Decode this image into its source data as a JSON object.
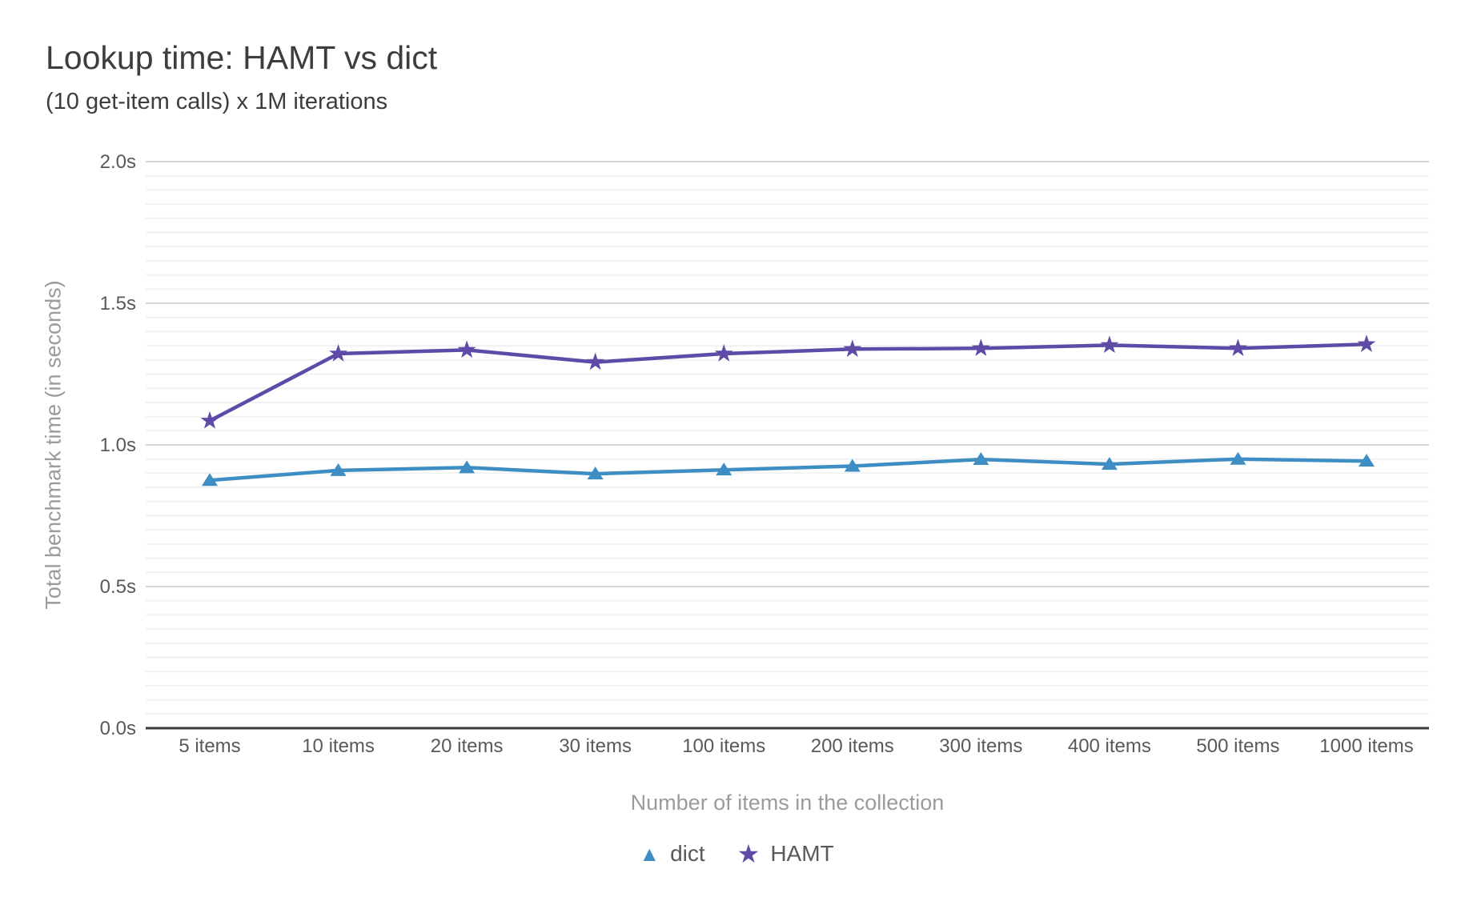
{
  "chart": {
    "title": "Lookup time: HAMT vs dict",
    "subtitle": "(10 get-item calls) x 1M iterations"
  },
  "chart_data": {
    "type": "line",
    "categories": [
      "5 items",
      "10 items",
      "20 items",
      "30 items",
      "100 items",
      "200 items",
      "300 items",
      "400 items",
      "500 items",
      "1000 items"
    ],
    "series": [
      {
        "name": "dict",
        "marker": "triangle",
        "color": "#3e8ec4",
        "values": [
          0.875,
          0.91,
          0.92,
          0.898,
          0.912,
          0.925,
          0.949,
          0.932,
          0.95,
          0.943
        ]
      },
      {
        "name": "HAMT",
        "marker": "star",
        "color": "#5e4ba7",
        "values": [
          1.085,
          1.322,
          1.335,
          1.292,
          1.322,
          1.338,
          1.341,
          1.352,
          1.341,
          1.355
        ]
      }
    ],
    "title": "Lookup time: HAMT vs dict",
    "subtitle": "(10 get-item calls) x 1M iterations",
    "xlabel": "Number of items in the collection",
    "ylabel": "Total benchmark time (in seconds)",
    "ylim": [
      0,
      2
    ],
    "y_major_step": 0.5,
    "y_minor_step": 0.05,
    "y_tick_suffix": "s",
    "y_tick_labels": [
      "0.0s",
      "0.5s",
      "1.0s",
      "1.5s",
      "2.0s"
    ],
    "grid": true,
    "legend_position": "bottom"
  },
  "colors": {
    "dict_series": "#3e8ec4",
    "hamt_series": "#5e4ba7",
    "grid_major": "#d6d6d6",
    "grid_minor": "#f1f1f1",
    "axis_line": "#3a3a3a",
    "tick_label": "#58595b",
    "axis_title": "#9b9b9b",
    "title_text": "#3d3d3d"
  }
}
